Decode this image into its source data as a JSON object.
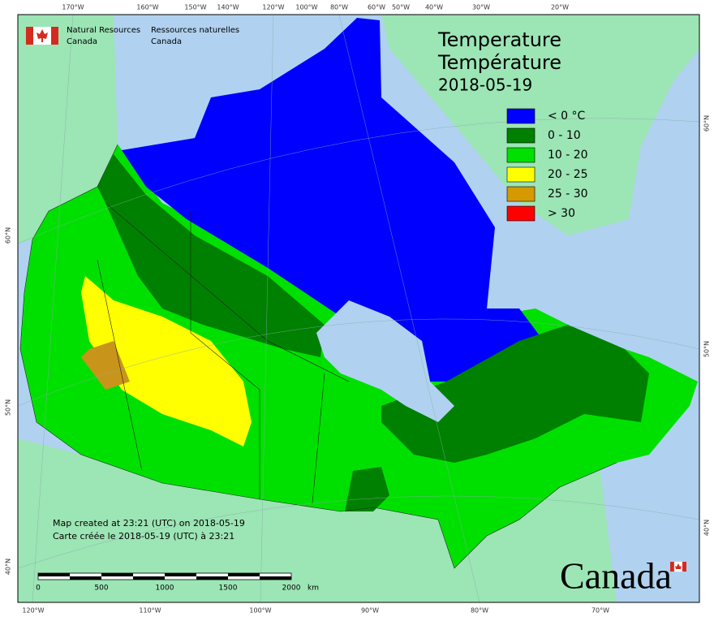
{
  "header": {
    "agency_en": "Natural Resources",
    "agency_en_2": "Canada",
    "agency_fr": "Ressources naturelles",
    "agency_fr_2": "Canada"
  },
  "title": {
    "line1": "Temperature",
    "line2": "Température",
    "date": "2018-05-19"
  },
  "legend": [
    {
      "label": "< 0 °C",
      "color": "#0000ff"
    },
    {
      "label": "0 - 10",
      "color": "#008000"
    },
    {
      "label": "10 - 20",
      "color": "#00e000"
    },
    {
      "label": "20 - 25",
      "color": "#ffff00"
    },
    {
      "label": "25 - 30",
      "color": "#d49a00"
    },
    {
      "label": "> 30",
      "color": "#ff0000"
    }
  ],
  "graticule": {
    "top": [
      "170°W",
      "160°W",
      "150°W",
      "140°W",
      "120°W",
      "100°W",
      "80°W",
      "60°W",
      "50°W",
      "40°W",
      "30°W",
      "20°W"
    ],
    "bottom": [
      "120°W",
      "110°W",
      "100°W",
      "90°W",
      "80°W",
      "70°W"
    ],
    "left": [
      "60°N",
      "50°N",
      "40°N"
    ],
    "right": [
      "60°N",
      "50°N",
      "40°N"
    ]
  },
  "notes": {
    "line1": "Map created at 23:21 (UTC) on 2018-05-19",
    "line2": "Carte créée le 2018-05-19 (UTC) à 23:21"
  },
  "scale": {
    "labels": [
      0,
      500,
      1000,
      1500,
      2000
    ],
    "unit": "km"
  },
  "wordmark": "Canada"
}
